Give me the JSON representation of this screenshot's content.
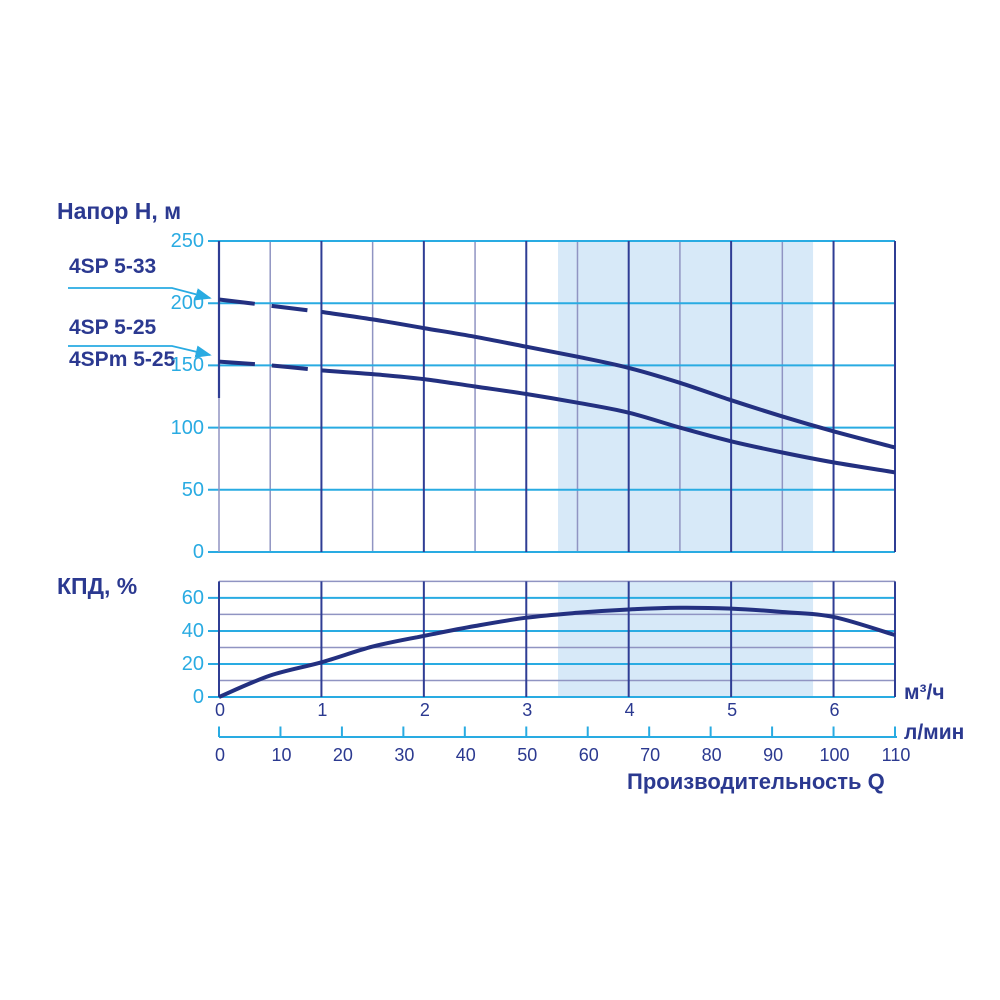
{
  "colors": {
    "navy_text": "#2B3990",
    "curve_navy": "#233080",
    "cyan": "#29ABE2",
    "grid_gray": "#9094C2",
    "grid_navy": "#2F3D94",
    "band_blue": "#D7E9F8",
    "background": "#FFFFFF"
  },
  "head_chart": {
    "title": "Напор Н, м",
    "series_labels": {
      "s33": "4SP 5-33",
      "s25": "4SP 5-25",
      "s25m": "4SPm 5-25"
    },
    "y_ticks": [
      250,
      200,
      150,
      100,
      50,
      0
    ]
  },
  "eff_chart": {
    "title": "КПД, %",
    "y_ticks": [
      60,
      40,
      20,
      0
    ]
  },
  "x_axis": {
    "m3h_ticks": [
      0,
      1,
      2,
      3,
      4,
      5,
      6
    ],
    "lmin_ticks": [
      0,
      10,
      20,
      30,
      40,
      50,
      60,
      70,
      80,
      90,
      100,
      110
    ],
    "unit_m3h": "м³/ч",
    "unit_lmin": "л/мин",
    "label": "Производительность Q"
  },
  "chart_data": [
    {
      "type": "line",
      "title": "Напор Н, м",
      "xlabel": "Производительность Q",
      "ylabel": "H, м",
      "x_units": [
        "м³/ч",
        "л/мин"
      ],
      "x": [
        0,
        0.5,
        1,
        1.5,
        2,
        2.5,
        3,
        3.5,
        4,
        4.5,
        5,
        5.5,
        6,
        6.6
      ],
      "series": [
        {
          "name": "4SP 5-33",
          "values": [
            203,
            198,
            193,
            187,
            180,
            173,
            165,
            157,
            148,
            136,
            122,
            109,
            97,
            84
          ]
        },
        {
          "name": "4SP 5-25 / 4SPm 5-25",
          "values": [
            153,
            150,
            146,
            143,
            139,
            133,
            127,
            120,
            112,
            100,
            89,
            80,
            72,
            64
          ]
        }
      ],
      "xlim": [
        0,
        6.6
      ],
      "ylim": [
        0,
        250
      ],
      "dashed_until_x": 1,
      "highlight_band_x": [
        3.31,
        5.8
      ],
      "grid": "on",
      "legend_position": "left-callouts"
    },
    {
      "type": "line",
      "title": "КПД, %",
      "ylabel": "КПД, %",
      "x": [
        0,
        0.5,
        1,
        1.5,
        2,
        2.5,
        3,
        3.5,
        4,
        4.5,
        5,
        5.5,
        6,
        6.6
      ],
      "series": [
        {
          "name": "КПД",
          "values": [
            0,
            13,
            21,
            30.5,
            37,
            43,
            48,
            51,
            53,
            54,
            53.5,
            51.5,
            48.5,
            37.5
          ]
        }
      ],
      "xlim": [
        0,
        6.6
      ],
      "ylim": [
        0,
        70
      ],
      "highlight_band_x": [
        3.31,
        5.8
      ],
      "grid": "on"
    }
  ]
}
